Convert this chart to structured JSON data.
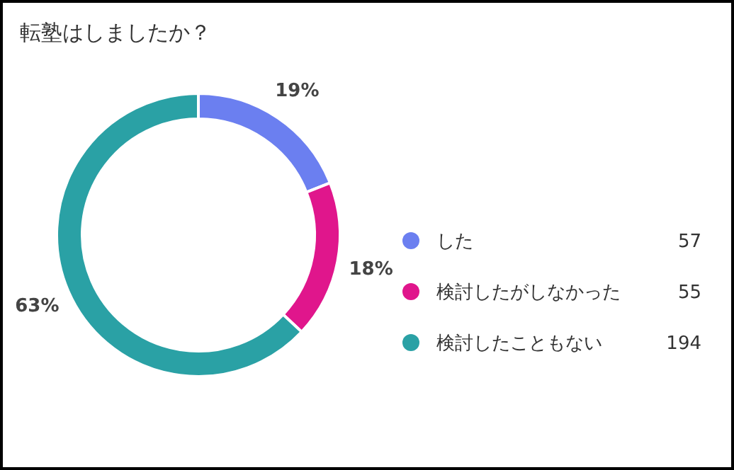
{
  "chart_data": {
    "type": "donut",
    "title": "転塾はしましたか？",
    "categories": [
      "した",
      "検討したがしなかった",
      "検討したこともない"
    ],
    "values": [
      19,
      18,
      63
    ],
    "value_labels": [
      "19%",
      "18%",
      "63%"
    ],
    "annotations": [
      "57",
      "55",
      "194"
    ],
    "colors": [
      "#6b7ff0",
      "#e0168c",
      "#2aa1a5"
    ],
    "legend": "right"
  }
}
